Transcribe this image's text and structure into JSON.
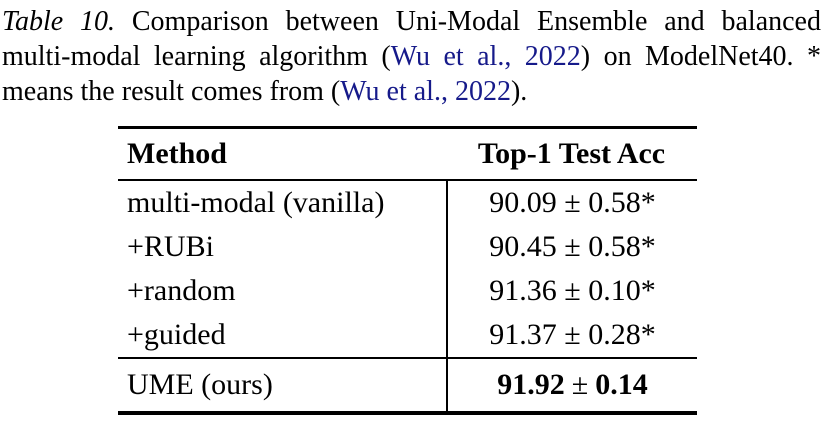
{
  "caption": {
    "lines": [
      {
        "label": "Table 10.",
        "text": " Comparison between Uni-Modal Ensemble and balanced"
      },
      {
        "pre": "multi-modal learning algorithm (",
        "cite": "Wu et al., 2022",
        "post": ") on ModelNet40. *"
      },
      {
        "pre": "means the result comes from (",
        "cite": "Wu et al., 2022",
        "post": ")."
      }
    ]
  },
  "table": {
    "headers": {
      "method": "Method",
      "acc": "Top-1 Test Acc"
    },
    "rows": [
      {
        "method": "multi-modal (vanilla)",
        "acc": "90.09 ± 0.58*"
      },
      {
        "method": "+RUBi",
        "acc": "90.45 ± 0.58*"
      },
      {
        "method": "+random",
        "acc": "91.36 ± 0.10*"
      },
      {
        "method": "+guided",
        "acc": "91.37 ± 0.28*"
      }
    ],
    "highlight_row": {
      "method": "UME (ours)",
      "acc_left": "91.92",
      "acc_pm": "±",
      "acc_right": "0.14"
    }
  },
  "colors": {
    "citation": "#161a8a",
    "text": "#000000",
    "rule": "#000000"
  }
}
